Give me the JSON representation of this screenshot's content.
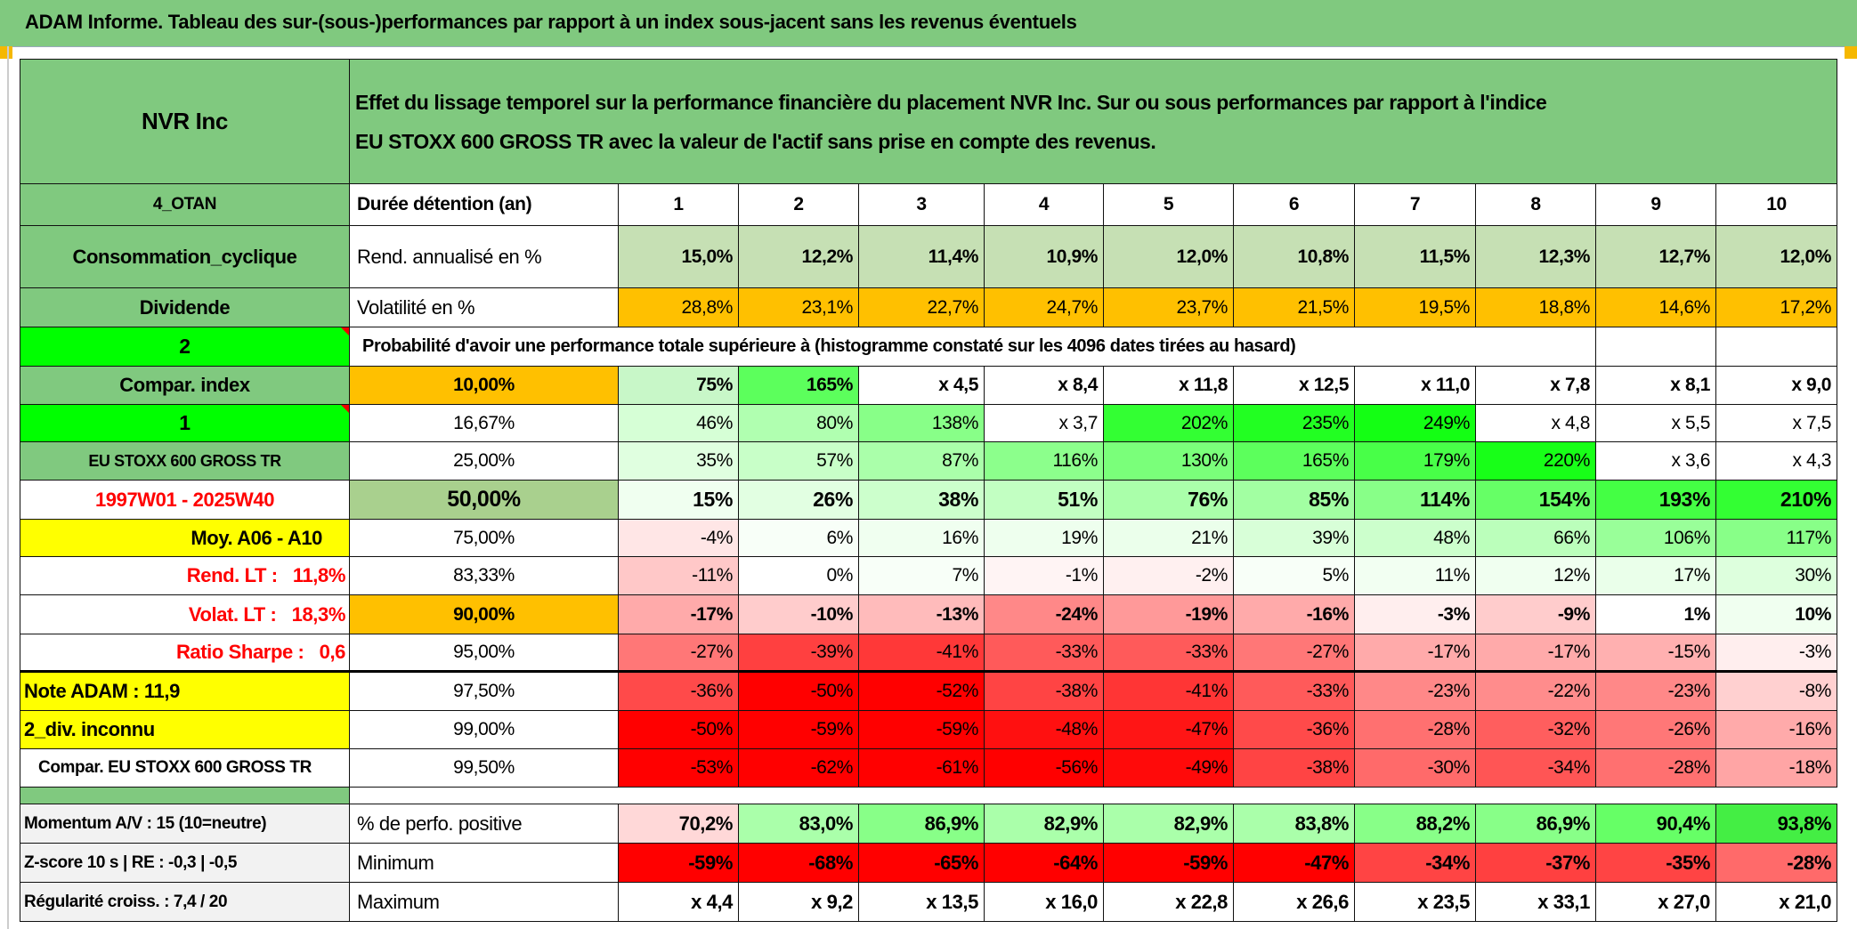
{
  "title": "ADAM Informe. Tableau des sur-(sous-)performances par rapport à un index sous-jacent sans les revenus éventuels",
  "header": {
    "asset": "NVR Inc",
    "description_line1": "Effet du lissage temporel sur la performance financière du placement NVR Inc. Sur ou sous performances par rapport à l'indice",
    "description_line2": "EU STOXX 600 GROSS TR avec la valeur de l'actif sans prise en compte des revenus."
  },
  "holding": {
    "left": "4_OTAN",
    "label": "Durée détention (an)",
    "years": [
      "1",
      "2",
      "3",
      "4",
      "5",
      "6",
      "7",
      "8",
      "9",
      "10"
    ]
  },
  "return_row": {
    "left": "Consommation_cyclique",
    "label": "Rend. annualisé en %",
    "values": [
      "15,0%",
      "12,2%",
      "11,4%",
      "10,9%",
      "12,0%",
      "10,8%",
      "11,5%",
      "12,3%",
      "12,7%",
      "12,0%"
    ],
    "color": "#c6e0b4"
  },
  "volatility_row": {
    "left": "Dividende",
    "label": "Volatilité en %",
    "values": [
      "28,8%",
      "23,1%",
      "22,7%",
      "24,7%",
      "23,7%",
      "21,5%",
      "19,5%",
      "18,8%",
      "14,6%",
      "17,2%"
    ],
    "color": "#ffc000"
  },
  "probability_row": {
    "left": "2",
    "label": "Probabilité d'avoir une performance totale supérieure à (histogramme constaté sur les 4096 dates tirées au hasard)"
  },
  "prob_rows": [
    {
      "left": "Compar. index",
      "left_style": "g",
      "pct": "10,00%",
      "pct_bg": "#ffc000",
      "bold": true,
      "values": [
        "75%",
        "165%",
        "x 4,5",
        "x 8,4",
        "x 11,8",
        "x 12,5",
        "x 11,0",
        "x 7,8",
        "x 8,1",
        "x 9,0"
      ],
      "colors": [
        "#c8f7c8",
        "#5cff5c",
        "#ffffff",
        "#ffffff",
        "#ffffff",
        "#ffffff",
        "#ffffff",
        "#ffffff",
        "#ffffff",
        "#ffffff"
      ]
    },
    {
      "left": "1",
      "left_style": "bright",
      "pct": "16,67%",
      "pct_bg": "#ffffff",
      "bold": false,
      "values": [
        "46%",
        "80%",
        "138%",
        "x 3,7",
        "202%",
        "235%",
        "249%",
        "x 4,8",
        "x 5,5",
        "x 7,5"
      ],
      "colors": [
        "#d6ffd6",
        "#b0ffb0",
        "#88ff88",
        "#ffffff",
        "#33ff33",
        "#22ff22",
        "#14ff14",
        "#ffffff",
        "#ffffff",
        "#ffffff"
      ]
    },
    {
      "left": "EU STOXX 600 GROSS TR",
      "left_style": "gsmall",
      "pct": "25,00%",
      "pct_bg": "#ffffff",
      "bold": false,
      "values": [
        "35%",
        "57%",
        "87%",
        "116%",
        "130%",
        "165%",
        "179%",
        "220%",
        "x 3,6",
        "x 4,3"
      ],
      "colors": [
        "#e0ffe0",
        "#c8ffc8",
        "#aaffaa",
        "#8cff8c",
        "#7aff7a",
        "#5cff5c",
        "#48ff48",
        "#18ff18",
        "#ffffff",
        "#ffffff"
      ]
    },
    {
      "left": "1997W01 - 2025W40",
      "left_style": "redc",
      "pct": "50,00%",
      "pct_bg": "#a9d08e",
      "bold": true,
      "big": true,
      "values": [
        "15%",
        "26%",
        "38%",
        "51%",
        "76%",
        "85%",
        "114%",
        "154%",
        "193%",
        "210%"
      ],
      "colors": [
        "#f0fff0",
        "#e2ffe2",
        "#ccffcc",
        "#c2ffc2",
        "#aaffaa",
        "#a2ffa2",
        "#88ff88",
        "#66ff66",
        "#44ff44",
        "#33ff33"
      ]
    },
    {
      "left": "Moy. A06 - A10",
      "left_style": "yellowr",
      "pct": "75,00%",
      "pct_bg": "#ffffff",
      "bold": false,
      "values": [
        "-4%",
        "6%",
        "16%",
        "19%",
        "21%",
        "39%",
        "48%",
        "66%",
        "106%",
        "117%"
      ],
      "colors": [
        "#ffe6e6",
        "#f8fff8",
        "#f0fff0",
        "#eeffee",
        "#ebffeb",
        "#d8ffd8",
        "#ccffcc",
        "#bbffbb",
        "#99ff99",
        "#88ff88"
      ]
    },
    {
      "left": "Rend. LT :   11,8%",
      "left_style": "redr",
      "pct": "83,33%",
      "pct_bg": "#ffffff",
      "bold": false,
      "values": [
        "-11%",
        "0%",
        "7%",
        "-1%",
        "-2%",
        "5%",
        "11%",
        "12%",
        "17%",
        "30%"
      ],
      "colors": [
        "#ffc8c8",
        "#ffffff",
        "#f8fff8",
        "#fff4f4",
        "#fff0f0",
        "#f8fff8",
        "#f2fff2",
        "#f0fff0",
        "#eaffea",
        "#ddffdd"
      ]
    },
    {
      "left": "Volat. LT :   18,3%",
      "left_style": "redr",
      "pct": "90,00%",
      "pct_bg": "#ffc000",
      "bold": true,
      "values": [
        "-17%",
        "-10%",
        "-13%",
        "-24%",
        "-19%",
        "-16%",
        "-3%",
        "-9%",
        "1%",
        "10%"
      ],
      "colors": [
        "#ffaaaa",
        "#ffcccc",
        "#ffbbbb",
        "#ff8888",
        "#ff9999",
        "#ffaaaa",
        "#ffeeee",
        "#ffcccc",
        "#ffffff",
        "#f0fff0"
      ]
    },
    {
      "left": "Ratio Sharpe :   0,6",
      "left_style": "redr",
      "pct": "95,00%",
      "pct_bg": "#ffffff",
      "bold": false,
      "values": [
        "-27%",
        "-39%",
        "-41%",
        "-33%",
        "-33%",
        "-27%",
        "-17%",
        "-17%",
        "-15%",
        "-3%"
      ],
      "colors": [
        "#ff7777",
        "#ff4040",
        "#ff3838",
        "#ff5a5a",
        "#ff5a5a",
        "#ff7777",
        "#ffaaaa",
        "#ffaaaa",
        "#ffb0b0",
        "#ffeeee"
      ]
    },
    {
      "left": "Note ADAM : 11,9",
      "left_style": "yellowl",
      "pct": "97,50%",
      "pct_bg": "#ffffff",
      "bold": false,
      "values": [
        "-36%",
        "-50%",
        "-52%",
        "-38%",
        "-41%",
        "-33%",
        "-23%",
        "-22%",
        "-23%",
        "-8%"
      ],
      "colors": [
        "#ff4a4a",
        "#ff0000",
        "#ff0000",
        "#ff4444",
        "#ff3535",
        "#ff5a5a",
        "#ff8888",
        "#ff8c8c",
        "#ff8888",
        "#ffd0d0"
      ]
    },
    {
      "left": "2_div. inconnu",
      "left_style": "yellowl",
      "pct": "99,00%",
      "pct_bg": "#ffffff",
      "bold": false,
      "values": [
        "-50%",
        "-59%",
        "-59%",
        "-48%",
        "-47%",
        "-36%",
        "-28%",
        "-32%",
        "-26%",
        "-16%"
      ],
      "colors": [
        "#ff0000",
        "#ff0000",
        "#ff0000",
        "#ff1010",
        "#ff1515",
        "#ff4a4a",
        "#ff7070",
        "#ff5e5e",
        "#ff7777",
        "#ffaaaa"
      ]
    },
    {
      "left": "Compar. EU STOXX 600 GROSS TR",
      "left_style": "plain",
      "pct": "99,50%",
      "pct_bg": "#ffffff",
      "bold": false,
      "values": [
        "-53%",
        "-62%",
        "-61%",
        "-56%",
        "-49%",
        "-38%",
        "-30%",
        "-34%",
        "-28%",
        "-18%"
      ],
      "colors": [
        "#ff0000",
        "#ff0000",
        "#ff0000",
        "#ff0000",
        "#ff0a0a",
        "#ff4444",
        "#ff6a6a",
        "#ff5555",
        "#ff7070",
        "#ffa5a5"
      ]
    }
  ],
  "stats_rows": [
    {
      "left": "Momentum A/V : 15 (10=neutre)",
      "label": "% de perfo. positive",
      "values": [
        "70,2%",
        "83,0%",
        "86,9%",
        "82,9%",
        "82,9%",
        "83,8%",
        "88,2%",
        "86,9%",
        "90,4%",
        "93,8%"
      ],
      "colors": [
        "#ffd8d8",
        "#aaffaa",
        "#88ff88",
        "#aaffaa",
        "#aaffaa",
        "#aaffaa",
        "#88ff88",
        "#88ff88",
        "#66ff66",
        "#44ee44"
      ]
    },
    {
      "left": "Z-score 10 s | RE : -0,3 | -0,5",
      "label": "Minimum",
      "values": [
        "-59%",
        "-68%",
        "-65%",
        "-64%",
        "-59%",
        "-47%",
        "-34%",
        "-37%",
        "-35%",
        "-28%"
      ],
      "colors": [
        "#ff0000",
        "#ff0000",
        "#ff0000",
        "#ff0000",
        "#ff0000",
        "#ff0000",
        "#ff4444",
        "#ff4040",
        "#ff4444",
        "#ff6a6a"
      ]
    },
    {
      "left": "Régularité croiss. : 7,4 / 20",
      "label": "Maximum",
      "values": [
        "x 4,4",
        "x 9,2",
        "x 13,5",
        "x 16,0",
        "x 22,8",
        "x 26,6",
        "x 23,5",
        "x 33,1",
        "x 27,0",
        "x 21,0"
      ],
      "colors": [
        "#ffffff",
        "#ffffff",
        "#ffffff",
        "#ffffff",
        "#ffffff",
        "#ffffff",
        "#ffffff",
        "#ffffff",
        "#ffffff",
        "#ffffff"
      ]
    }
  ],
  "colors": {
    "header_green": "#80c97f",
    "bright_green": "#00ff00",
    "yellow": "#ffff00",
    "orange": "#ffc000",
    "label_red": "#ff0000"
  }
}
